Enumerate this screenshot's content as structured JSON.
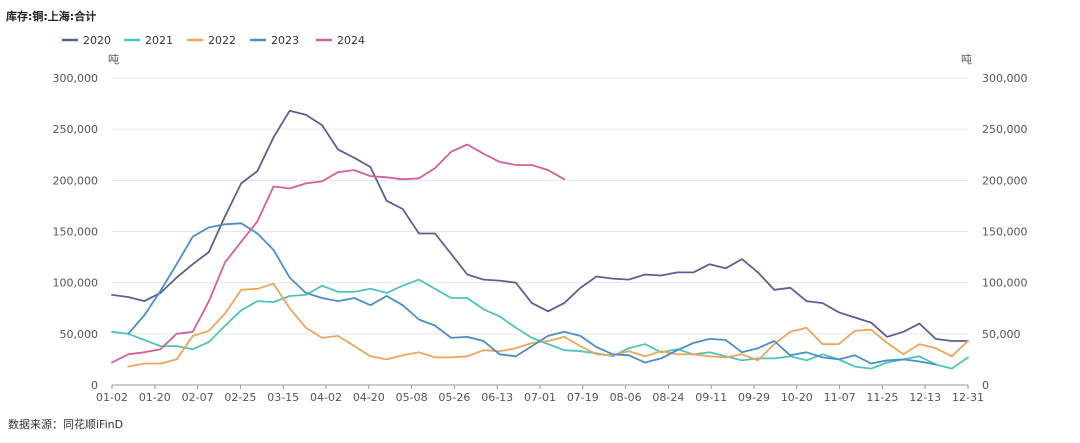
{
  "title": "库存:铜:上海:合计",
  "source": "数据来源：同花顺iFinD",
  "chart_data": {
    "type": "line",
    "unit_left": "吨",
    "unit_right": "吨",
    "ylim": [
      0,
      300000
    ],
    "yticks": [
      "0",
      "50,000",
      "100,000",
      "150,000",
      "200,000",
      "250,000",
      "300,000"
    ],
    "ytick_values": [
      0,
      50000,
      100000,
      150000,
      200000,
      250000,
      300000
    ],
    "x_tick_labels": [
      "01-02",
      "01-20",
      "02-07",
      "02-25",
      "03-15",
      "04-02",
      "04-20",
      "05-08",
      "05-26",
      "06-13",
      "07-01",
      "07-19",
      "08-06",
      "08-24",
      "09-11",
      "09-29",
      "10-20",
      "11-07",
      "11-25",
      "12-13",
      "12-31"
    ],
    "grid": true,
    "legend_position": "top-left",
    "series": [
      {
        "name": "2020",
        "color": "#5c5f96",
        "values": [
          88000,
          86000,
          82000,
          90000,
          105000,
          118000,
          130000,
          165000,
          197000,
          209000,
          242000,
          268000,
          264000,
          254000,
          230000,
          222000,
          213000,
          180000,
          172000,
          148000,
          148000,
          128000,
          108000,
          103000,
          102000,
          100000,
          80000,
          72000,
          80000,
          95000,
          106000,
          104000,
          103000,
          108000,
          107000,
          110000,
          110000,
          118000,
          114000,
          123000,
          110000,
          93000,
          95000,
          82000,
          80000,
          71000,
          66000,
          61000,
          47000,
          52000,
          60000,
          45000,
          43000,
          43000
        ]
      },
      {
        "name": "2021",
        "color": "#4dc5bb",
        "values": [
          52000,
          50000,
          44000,
          38000,
          38000,
          35000,
          42000,
          58000,
          73000,
          82000,
          81000,
          87000,
          88000,
          97000,
          91000,
          91000,
          94000,
          90000,
          97000,
          103000,
          94000,
          85000,
          85000,
          74000,
          67000,
          56000,
          46000,
          40000,
          34000,
          33000,
          31000,
          28000,
          36000,
          40000,
          32000,
          35000,
          30000,
          32000,
          28000,
          24000,
          26000,
          26000,
          28000,
          24000,
          30000,
          25000,
          18000,
          16000,
          22000,
          25000,
          28000,
          20000,
          16000,
          27000
        ]
      },
      {
        "name": "2022",
        "color": "#eda55e",
        "values": [
          null,
          18000,
          21000,
          21000,
          25000,
          48000,
          53000,
          70000,
          93000,
          94000,
          99000,
          75000,
          56000,
          46000,
          48000,
          38000,
          28000,
          25000,
          29000,
          32000,
          27000,
          27000,
          28000,
          34000,
          33000,
          36000,
          41000,
          43000,
          47000,
          38000,
          30000,
          29000,
          33000,
          28000,
          33000,
          30000,
          30000,
          28000,
          27000,
          30000,
          24000,
          40000,
          52000,
          56000,
          40000,
          40000,
          53000,
          54000,
          41000,
          30000,
          40000,
          36000,
          28000,
          43000
        ]
      },
      {
        "name": "2023",
        "color": "#4b8ec8",
        "values": [
          null,
          50000,
          68000,
          92000,
          118000,
          145000,
          154000,
          157000,
          158000,
          148000,
          132000,
          105000,
          90000,
          85000,
          82000,
          85000,
          78000,
          87000,
          78000,
          64000,
          58000,
          46000,
          47000,
          43000,
          30000,
          28000,
          38000,
          48000,
          52000,
          48000,
          37000,
          30000,
          29000,
          22000,
          26000,
          34000,
          41000,
          45000,
          44000,
          32000,
          36000,
          43000,
          29000,
          32000,
          27000,
          25000,
          29000,
          21000,
          24000,
          25000,
          23000,
          20000
        ]
      },
      {
        "name": "2024",
        "color": "#d2609a",
        "values": [
          22000,
          30000,
          32000,
          35000,
          50000,
          52000,
          82000,
          120000,
          140000,
          160000,
          194000,
          192000,
          197000,
          199000,
          208000,
          210000,
          204000,
          203000,
          201000,
          202000,
          212000,
          228000,
          235000,
          226000,
          218000,
          215000,
          215000,
          210000,
          201000
        ]
      }
    ]
  }
}
